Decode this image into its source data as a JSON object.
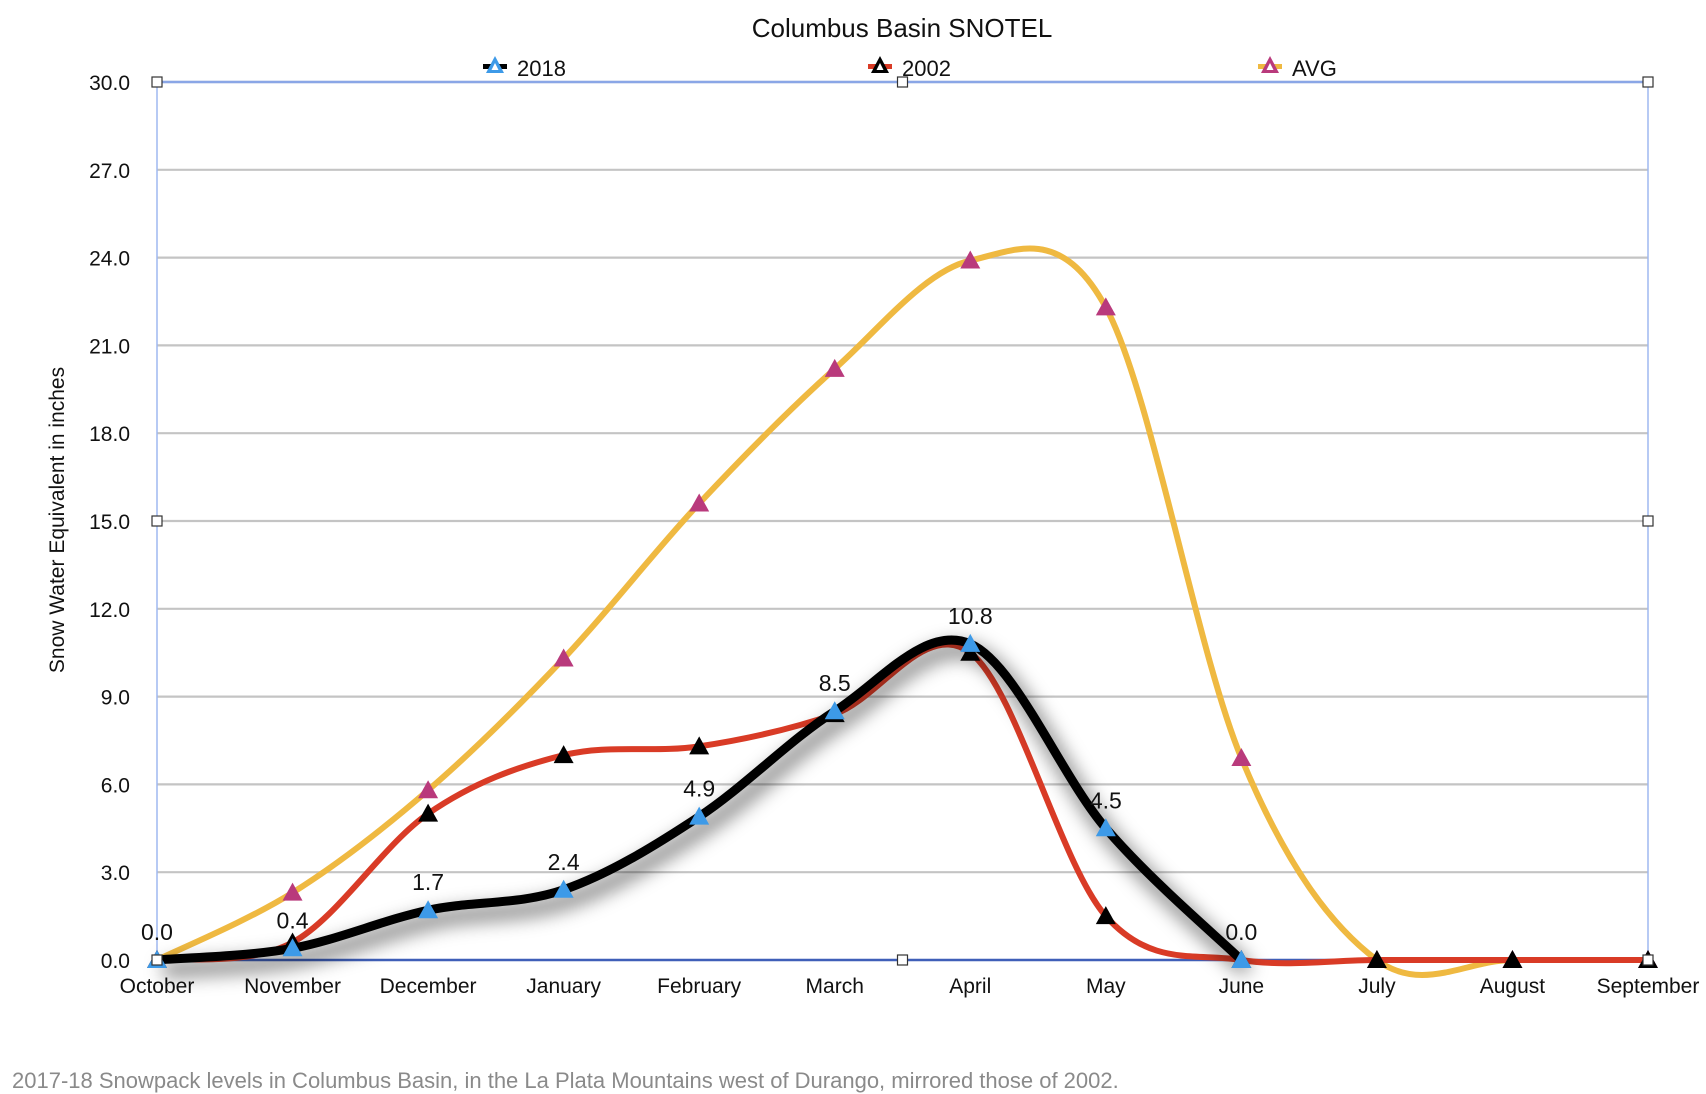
{
  "chart_data": {
    "type": "line",
    "title": "Columbus Basin SNOTEL",
    "xlabel": "",
    "ylabel": "Snow Water Equivalent in inches",
    "categories": [
      "October",
      "November",
      "December",
      "January",
      "February",
      "March",
      "April",
      "May",
      "June",
      "July",
      "August",
      "September"
    ],
    "yticks": [
      "0.0",
      "3.0",
      "6.0",
      "9.0",
      "12.0",
      "15.0",
      "18.0",
      "21.0",
      "24.0",
      "27.0",
      "30.0"
    ],
    "ylim": [
      0,
      30
    ],
    "grid": true,
    "legend_position": "top",
    "series": [
      {
        "name": "2018",
        "line_color": "#000000",
        "marker_color": "#3d9ae8",
        "shadow": true,
        "values": [
          0.0,
          0.4,
          1.7,
          2.4,
          4.9,
          8.5,
          10.8,
          4.5,
          0.0,
          null,
          null,
          null
        ],
        "data_labels": [
          "0.0",
          "0.4",
          "1.7",
          "2.4",
          "4.9",
          "8.5",
          "10.8",
          "4.5",
          "0.0",
          null,
          null,
          null
        ]
      },
      {
        "name": "2002",
        "line_color": "#d93b26",
        "marker_color": "#000000",
        "shadow": false,
        "values": [
          0.0,
          0.6,
          5.0,
          7.0,
          7.3,
          8.4,
          10.5,
          1.5,
          0.0,
          0.0,
          0.0,
          0.0
        ]
      },
      {
        "name": "AVG",
        "line_color": "#efb941",
        "marker_color": "#b93a7c",
        "shadow": false,
        "values": [
          0.0,
          2.3,
          5.8,
          10.3,
          15.6,
          20.2,
          23.9,
          22.3,
          6.9,
          0.0,
          0.0,
          0.0
        ]
      }
    ]
  },
  "caption": "2017-18 Snowpack levels in Columbus Basin, in the La Plata Mountains west of Durango, mirrored those of 2002."
}
